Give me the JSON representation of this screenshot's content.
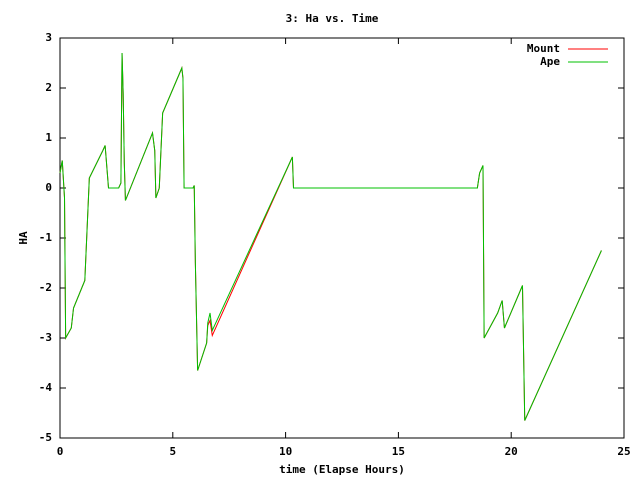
{
  "chart_data": {
    "type": "line",
    "title": "3: Ha vs. Time",
    "x_label": "time (Elapse Hours)",
    "y_label": "HA",
    "x": [
      0,
      0.1,
      0.2,
      0.25,
      0.5,
      0.6,
      1.1,
      1.3,
      1.9,
      2.0,
      2.15,
      2.6,
      2.7,
      2.75,
      2.8,
      2.85,
      2.9,
      4.1,
      4.2,
      4.25,
      4.4,
      4.55,
      5.4,
      5.45,
      5.5,
      5.9,
      5.95,
      6.0,
      6.1,
      6.5,
      6.55,
      6.65,
      6.75,
      10.3,
      10.35,
      18.5,
      18.6,
      18.75,
      18.8,
      19.4,
      19.6,
      19.7,
      20.5,
      20.6,
      24.0
    ],
    "series": [
      {
        "name": "Mount",
        "color": "#ff0000",
        "values": [
          0.3,
          0.55,
          -0.2,
          -3.0,
          -2.8,
          -2.4,
          -1.85,
          0.2,
          0.75,
          0.85,
          0,
          0,
          0.1,
          2.7,
          1.9,
          0.5,
          -0.25,
          1.1,
          0.75,
          -0.2,
          0,
          1.5,
          2.4,
          2.2,
          0,
          0,
          0.05,
          -1.5,
          -3.65,
          -3.1,
          -2.75,
          -2.65,
          -2.95,
          0.62,
          0,
          0,
          0.3,
          0.45,
          -3.0,
          -2.5,
          -2.25,
          -2.8,
          -1.95,
          -4.65,
          -1.25
        ]
      },
      {
        "name": "Ape",
        "color": "#00c000",
        "values": [
          0.3,
          0.55,
          -0.2,
          -3.0,
          -2.8,
          -2.4,
          -1.85,
          0.2,
          0.75,
          0.85,
          0,
          0,
          0.1,
          2.7,
          1.9,
          0.5,
          -0.25,
          1.1,
          0.75,
          -0.2,
          0,
          1.5,
          2.4,
          2.2,
          0,
          0,
          0.05,
          -1.5,
          -3.65,
          -3.1,
          -2.7,
          -2.5,
          -2.85,
          0.62,
          0,
          0,
          0.3,
          0.45,
          -3.0,
          -2.5,
          -2.25,
          -2.8,
          -1.95,
          -4.65,
          -1.25
        ]
      }
    ],
    "xlim": [
      0,
      25
    ],
    "ylim": [
      -5,
      3
    ],
    "xticks": [
      0,
      5,
      10,
      15,
      20,
      25
    ],
    "yticks": [
      -5,
      -4,
      -3,
      -2,
      -1,
      0,
      1,
      2,
      3
    ],
    "legend": "top-right"
  }
}
